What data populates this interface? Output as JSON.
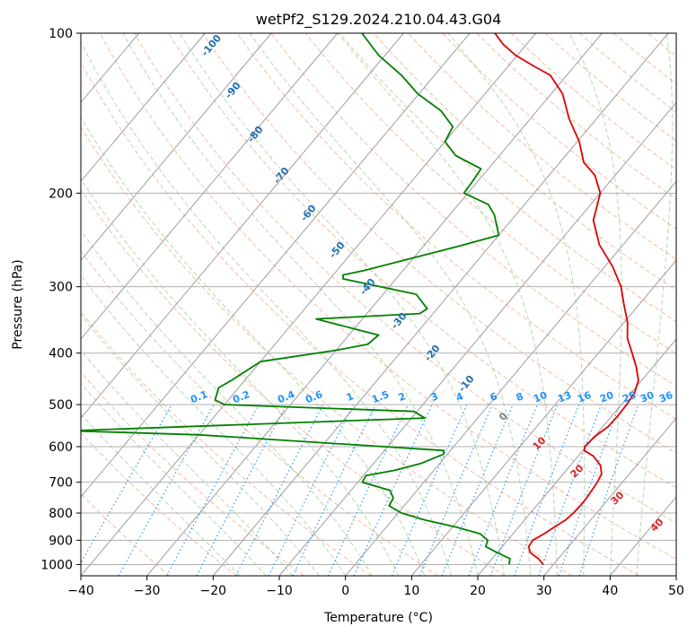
{
  "chart_data": {
    "type": "line",
    "title": "wetPf2_S129.2024.210.04.43.G04",
    "xlabel": "Temperature (°C)",
    "ylabel": "Pressure (hPa)",
    "xlim": [
      -40,
      50
    ],
    "ylim": [
      1050,
      100
    ],
    "y_scale": "log",
    "grid": true,
    "x_ticks": [
      "−40",
      "−30",
      "−20",
      "−10",
      "0",
      "10",
      "20",
      "30",
      "40",
      "50"
    ],
    "y_ticks": [
      "100",
      "200",
      "300",
      "400",
      "500",
      "600",
      "700",
      "800",
      "900",
      "1000"
    ],
    "colors": {
      "temperature": "#e00000",
      "dewpoint": "#008000",
      "isotherm_label": "#1f6fb0",
      "mixing_ratio": "#1e90ff",
      "dry_adiabat_label": "#d62728",
      "zero_label": "#7f7f7f"
    },
    "series": [
      {
        "role": "temperature",
        "points": [
          [
            28.5,
            1000
          ],
          [
            27.0,
            975
          ],
          [
            25.0,
            950
          ],
          [
            24.0,
            925
          ],
          [
            23.8,
            900
          ],
          [
            24.7,
            875
          ],
          [
            25.4,
            850
          ],
          [
            26.2,
            825
          ],
          [
            26.5,
            800
          ],
          [
            26.6,
            775
          ],
          [
            26.6,
            750
          ],
          [
            26.4,
            725
          ],
          [
            26.2,
            700
          ],
          [
            25.8,
            675
          ],
          [
            24.5,
            650
          ],
          [
            22.3,
            625
          ],
          [
            20.2,
            610
          ],
          [
            19.8,
            600
          ],
          [
            20.0,
            575
          ],
          [
            20.8,
            550
          ],
          [
            20.9,
            525
          ],
          [
            20.8,
            500
          ],
          [
            20.5,
            475
          ],
          [
            19.5,
            450
          ],
          [
            17.5,
            425
          ],
          [
            15.1,
            400
          ],
          [
            12.5,
            375
          ],
          [
            10.5,
            350
          ],
          [
            7.8,
            325
          ],
          [
            5.0,
            300
          ],
          [
            1.2,
            275
          ],
          [
            -3.6,
            250
          ],
          [
            -7.6,
            225
          ],
          [
            -10.0,
            200
          ],
          [
            -13.1,
            185
          ],
          [
            -16.4,
            175
          ],
          [
            -19.7,
            160
          ],
          [
            -24.1,
            145
          ],
          [
            -28.3,
            130
          ],
          [
            -32.5,
            120
          ],
          [
            -36.4,
            115
          ],
          [
            -40.3,
            110
          ],
          [
            -43.5,
            105
          ],
          [
            -46.2,
            100
          ]
        ]
      },
      {
        "role": "dewpoint",
        "points": [
          [
            23.3,
            1000
          ],
          [
            22.7,
            975
          ],
          [
            20.0,
            950
          ],
          [
            17.5,
            925
          ],
          [
            17.0,
            900
          ],
          [
            15.0,
            875
          ],
          [
            10.5,
            850
          ],
          [
            5.0,
            825
          ],
          [
            0.5,
            800
          ],
          [
            -2.3,
            775
          ],
          [
            -2.6,
            750
          ],
          [
            -4.1,
            725
          ],
          [
            -9.3,
            700
          ],
          [
            -9.6,
            680
          ],
          [
            -6.0,
            665
          ],
          [
            -2.8,
            645
          ],
          [
            -0.6,
            620
          ],
          [
            -1.0,
            610
          ],
          [
            -40.0,
            570
          ],
          [
            -60.0,
            560
          ],
          [
            -8.0,
            530
          ],
          [
            -10.5,
            515
          ],
          [
            -40.0,
            500
          ],
          [
            -42.0,
            490
          ],
          [
            -43.0,
            465
          ],
          [
            -42.0,
            450
          ],
          [
            -40.0,
            415
          ],
          [
            -30.0,
            395
          ],
          [
            -26.0,
            385
          ],
          [
            -25.5,
            370
          ],
          [
            -30.0,
            360
          ],
          [
            -37.0,
            345
          ],
          [
            -22.0,
            337
          ],
          [
            -21.5,
            330
          ],
          [
            -25.0,
            310
          ],
          [
            -38.0,
            290
          ],
          [
            -38.5,
            285
          ],
          [
            -36.0,
            280
          ],
          [
            -24.0,
            250
          ],
          [
            -20.0,
            240
          ],
          [
            -23.2,
            220
          ],
          [
            -25.5,
            210
          ],
          [
            -30.6,
            200
          ],
          [
            -30.8,
            190
          ],
          [
            -31.1,
            180
          ],
          [
            -36.6,
            170
          ],
          [
            -40.0,
            160
          ],
          [
            -40.7,
            150
          ],
          [
            -44.5,
            140
          ],
          [
            -50.2,
            130
          ],
          [
            -55.0,
            120
          ],
          [
            -61.0,
            110
          ],
          [
            -66.3,
            100
          ]
        ]
      }
    ],
    "isotherm_labels": [
      "-100",
      "-90",
      "-80",
      "-70",
      "-60",
      "-50",
      "-40",
      "-30",
      "-20",
      "-10"
    ],
    "mixing_ratio_labels": [
      "0.1",
      "0.2",
      "0.4",
      "0.6",
      "1",
      "1.5",
      "2",
      "3",
      "4",
      "6",
      "8",
      "10",
      "13",
      "16",
      "20",
      "25",
      "30",
      "36"
    ],
    "mixing_ratio_values": [
      0.1,
      0.2,
      0.4,
      0.6,
      1,
      1.5,
      2,
      3,
      4,
      6,
      8,
      10,
      13,
      16,
      20,
      25,
      30,
      36
    ],
    "dry_adiabat_labels": [
      "10",
      "20",
      "30",
      "40"
    ],
    "zero_label": "0"
  }
}
